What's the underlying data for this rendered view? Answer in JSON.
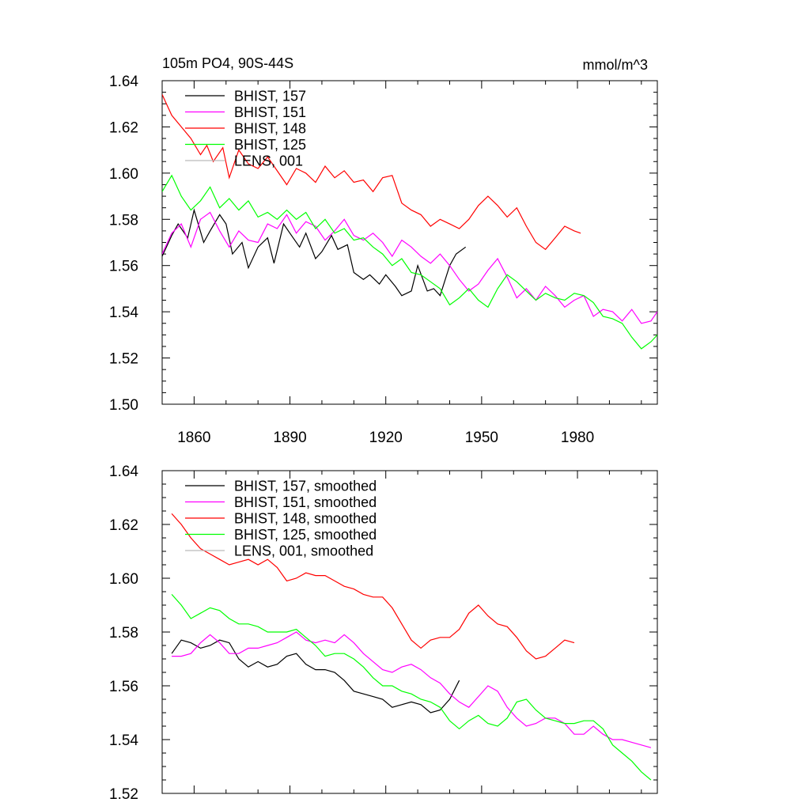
{
  "chart_data": [
    {
      "type": "line",
      "title": "105m PO4, 90S-44S",
      "units": "mmol/m^3",
      "xlabel": "",
      "ylabel": "",
      "xlim": [
        1850,
        2005
      ],
      "ylim": [
        1.5,
        1.64
      ],
      "xticks": [
        1860,
        1890,
        1920,
        1950,
        1980
      ],
      "yticks": [
        1.5,
        1.52,
        1.54,
        1.56,
        1.58,
        1.6,
        1.62,
        1.64
      ],
      "ytick_labels": [
        "1.50",
        "1.52",
        "1.54",
        "1.56",
        "1.58",
        "1.60",
        "1.62",
        "1.64"
      ],
      "grid": false,
      "legend_position": "top-left",
      "series": [
        {
          "name": "BHIST, 157",
          "color": "#000000",
          "x": [
            1850,
            1853,
            1855,
            1858,
            1860,
            1863,
            1865,
            1868,
            1870,
            1872,
            1875,
            1877,
            1880,
            1883,
            1885,
            1888,
            1890,
            1893,
            1895,
            1898,
            1900,
            1903,
            1905,
            1908,
            1910,
            1913,
            1915,
            1918,
            1920,
            1923,
            1925,
            1928,
            1930,
            1933,
            1935,
            1937,
            1940,
            1942,
            1945
          ],
          "y": [
            1.564,
            1.573,
            1.578,
            1.572,
            1.584,
            1.57,
            1.575,
            1.582,
            1.578,
            1.565,
            1.57,
            1.559,
            1.568,
            1.572,
            1.561,
            1.578,
            1.574,
            1.568,
            1.574,
            1.563,
            1.566,
            1.573,
            1.567,
            1.569,
            1.557,
            1.554,
            1.556,
            1.552,
            1.556,
            1.551,
            1.547,
            1.549,
            1.56,
            1.549,
            1.55,
            1.547,
            1.56,
            1.565,
            1.568
          ]
        },
        {
          "name": "BHIST, 151",
          "color": "#ff00ff",
          "x": [
            1850,
            1853,
            1856,
            1859,
            1862,
            1865,
            1868,
            1871,
            1874,
            1877,
            1880,
            1883,
            1886,
            1889,
            1892,
            1895,
            1898,
            1901,
            1904,
            1907,
            1910,
            1913,
            1916,
            1919,
            1922,
            1925,
            1928,
            1931,
            1934,
            1937,
            1940,
            1943,
            1946,
            1949,
            1952,
            1955,
            1958,
            1961,
            1964,
            1967,
            1970,
            1973,
            1976,
            1979,
            1982,
            1985,
            1988,
            1991,
            1994,
            1997,
            2000,
            2003,
            2005
          ],
          "y": [
            1.565,
            1.574,
            1.578,
            1.568,
            1.58,
            1.583,
            1.575,
            1.568,
            1.575,
            1.571,
            1.57,
            1.578,
            1.576,
            1.582,
            1.574,
            1.579,
            1.577,
            1.571,
            1.575,
            1.58,
            1.573,
            1.571,
            1.574,
            1.57,
            1.564,
            1.571,
            1.568,
            1.564,
            1.561,
            1.565,
            1.56,
            1.554,
            1.549,
            1.552,
            1.558,
            1.563,
            1.555,
            1.546,
            1.55,
            1.545,
            1.551,
            1.547,
            1.542,
            1.545,
            1.547,
            1.538,
            1.541,
            1.54,
            1.536,
            1.541,
            1.535,
            1.536,
            1.54
          ]
        },
        {
          "name": "BHIST, 148",
          "color": "#ff0000",
          "x": [
            1850,
            1853,
            1856,
            1859,
            1862,
            1864,
            1866,
            1869,
            1871,
            1874,
            1877,
            1880,
            1883,
            1886,
            1889,
            1892,
            1895,
            1898,
            1901,
            1904,
            1907,
            1910,
            1913,
            1916,
            1919,
            1922,
            1925,
            1928,
            1931,
            1934,
            1937,
            1940,
            1943,
            1946,
            1949,
            1952,
            1955,
            1958,
            1961,
            1964,
            1967,
            1970,
            1973,
            1976,
            1979,
            1981
          ],
          "y": [
            1.634,
            1.625,
            1.62,
            1.615,
            1.608,
            1.612,
            1.605,
            1.611,
            1.598,
            1.61,
            1.604,
            1.602,
            1.607,
            1.601,
            1.595,
            1.602,
            1.6,
            1.596,
            1.603,
            1.598,
            1.601,
            1.596,
            1.597,
            1.592,
            1.598,
            1.599,
            1.587,
            1.584,
            1.582,
            1.577,
            1.58,
            1.578,
            1.576,
            1.58,
            1.586,
            1.59,
            1.586,
            1.581,
            1.585,
            1.577,
            1.57,
            1.567,
            1.572,
            1.577,
            1.575,
            1.574
          ]
        },
        {
          "name": "BHIST, 125",
          "color": "#00ff00",
          "x": [
            1850,
            1853,
            1856,
            1859,
            1862,
            1865,
            1868,
            1871,
            1874,
            1877,
            1880,
            1883,
            1886,
            1889,
            1892,
            1895,
            1898,
            1901,
            1904,
            1907,
            1910,
            1913,
            1916,
            1919,
            1922,
            1925,
            1928,
            1931,
            1934,
            1937,
            1940,
            1943,
            1946,
            1949,
            1952,
            1955,
            1958,
            1961,
            1964,
            1967,
            1970,
            1973,
            1976,
            1979,
            1982,
            1985,
            1988,
            1991,
            1994,
            1997,
            2000,
            2003,
            2005
          ],
          "y": [
            1.592,
            1.599,
            1.59,
            1.584,
            1.588,
            1.594,
            1.585,
            1.589,
            1.584,
            1.588,
            1.581,
            1.583,
            1.58,
            1.584,
            1.58,
            1.583,
            1.576,
            1.58,
            1.574,
            1.576,
            1.571,
            1.572,
            1.568,
            1.565,
            1.56,
            1.563,
            1.557,
            1.556,
            1.553,
            1.55,
            1.543,
            1.546,
            1.55,
            1.545,
            1.542,
            1.55,
            1.556,
            1.553,
            1.549,
            1.545,
            1.548,
            1.546,
            1.545,
            1.548,
            1.547,
            1.544,
            1.538,
            1.537,
            1.535,
            1.529,
            1.524,
            1.527,
            1.53
          ]
        },
        {
          "name": "LENS, 001",
          "color": "#bbbbbb",
          "x": [],
          "y": []
        }
      ]
    },
    {
      "type": "line",
      "title": "",
      "xlabel": "",
      "ylabel": "",
      "xlim": [
        1850,
        2005
      ],
      "ylim": [
        1.52,
        1.64
      ],
      "xticks": [
        1860,
        1890,
        1920,
        1950,
        1980
      ],
      "yticks": [
        1.52,
        1.54,
        1.56,
        1.58,
        1.6,
        1.62,
        1.64
      ],
      "ytick_labels": [
        "1.52",
        "1.54",
        "1.56",
        "1.58",
        "1.60",
        "1.62",
        "1.64"
      ],
      "grid": false,
      "legend_position": "top-left",
      "series": [
        {
          "name": "BHIST, 157, smoothed",
          "color": "#000000",
          "x": [
            1853,
            1856,
            1859,
            1862,
            1865,
            1868,
            1871,
            1874,
            1877,
            1880,
            1883,
            1886,
            1889,
            1892,
            1895,
            1898,
            1901,
            1904,
            1907,
            1910,
            1913,
            1916,
            1919,
            1922,
            1925,
            1928,
            1931,
            1934,
            1937,
            1940,
            1943
          ],
          "y": [
            1.572,
            1.577,
            1.576,
            1.574,
            1.575,
            1.577,
            1.576,
            1.57,
            1.567,
            1.569,
            1.567,
            1.568,
            1.571,
            1.572,
            1.568,
            1.566,
            1.566,
            1.565,
            1.562,
            1.558,
            1.557,
            1.556,
            1.555,
            1.552,
            1.553,
            1.554,
            1.553,
            1.55,
            1.551,
            1.555,
            1.562
          ]
        },
        {
          "name": "BHIST, 151, smoothed",
          "color": "#ff00ff",
          "x": [
            1853,
            1856,
            1859,
            1862,
            1865,
            1868,
            1871,
            1874,
            1877,
            1880,
            1883,
            1886,
            1889,
            1892,
            1895,
            1898,
            1901,
            1904,
            1907,
            1910,
            1913,
            1916,
            1919,
            1922,
            1925,
            1928,
            1931,
            1934,
            1937,
            1940,
            1943,
            1946,
            1949,
            1952,
            1955,
            1958,
            1961,
            1964,
            1967,
            1970,
            1973,
            1976,
            1979,
            1982,
            1985,
            1988,
            1991,
            1994,
            1997,
            2000,
            2003
          ],
          "y": [
            1.571,
            1.571,
            1.572,
            1.576,
            1.579,
            1.576,
            1.572,
            1.572,
            1.574,
            1.574,
            1.575,
            1.576,
            1.578,
            1.58,
            1.577,
            1.576,
            1.577,
            1.576,
            1.579,
            1.576,
            1.572,
            1.569,
            1.566,
            1.565,
            1.567,
            1.568,
            1.566,
            1.563,
            1.561,
            1.557,
            1.554,
            1.552,
            1.556,
            1.56,
            1.558,
            1.552,
            1.548,
            1.545,
            1.546,
            1.548,
            1.548,
            1.546,
            1.542,
            1.542,
            1.545,
            1.542,
            1.54,
            1.54,
            1.539,
            1.538,
            1.537
          ]
        },
        {
          "name": "BHIST, 148, smoothed",
          "color": "#ff0000",
          "x": [
            1853,
            1856,
            1859,
            1862,
            1865,
            1868,
            1871,
            1874,
            1877,
            1880,
            1883,
            1886,
            1889,
            1892,
            1895,
            1898,
            1901,
            1904,
            1907,
            1910,
            1913,
            1916,
            1919,
            1922,
            1925,
            1928,
            1931,
            1934,
            1937,
            1940,
            1943,
            1946,
            1949,
            1952,
            1955,
            1958,
            1961,
            1964,
            1967,
            1970,
            1973,
            1976,
            1979
          ],
          "y": [
            1.624,
            1.62,
            1.615,
            1.611,
            1.609,
            1.607,
            1.605,
            1.606,
            1.607,
            1.605,
            1.607,
            1.604,
            1.599,
            1.6,
            1.602,
            1.601,
            1.601,
            1.599,
            1.597,
            1.596,
            1.594,
            1.593,
            1.593,
            1.589,
            1.583,
            1.577,
            1.574,
            1.577,
            1.578,
            1.578,
            1.581,
            1.587,
            1.59,
            1.586,
            1.583,
            1.582,
            1.578,
            1.573,
            1.57,
            1.571,
            1.574,
            1.577,
            1.576
          ]
        },
        {
          "name": "BHIST, 125, smoothed",
          "color": "#00ff00",
          "x": [
            1853,
            1856,
            1859,
            1862,
            1865,
            1868,
            1871,
            1874,
            1877,
            1880,
            1883,
            1886,
            1889,
            1892,
            1895,
            1898,
            1901,
            1904,
            1907,
            1910,
            1913,
            1916,
            1919,
            1922,
            1925,
            1928,
            1931,
            1934,
            1937,
            1940,
            1943,
            1946,
            1949,
            1952,
            1955,
            1958,
            1961,
            1964,
            1967,
            1970,
            1973,
            1976,
            1979,
            1982,
            1985,
            1988,
            1991,
            1994,
            1997,
            2000,
            2003
          ],
          "y": [
            1.594,
            1.59,
            1.585,
            1.587,
            1.589,
            1.588,
            1.585,
            1.583,
            1.583,
            1.582,
            1.58,
            1.58,
            1.58,
            1.581,
            1.578,
            1.575,
            1.571,
            1.572,
            1.572,
            1.57,
            1.567,
            1.563,
            1.56,
            1.56,
            1.558,
            1.557,
            1.555,
            1.554,
            1.552,
            1.547,
            1.544,
            1.547,
            1.549,
            1.546,
            1.545,
            1.548,
            1.554,
            1.555,
            1.551,
            1.548,
            1.547,
            1.546,
            1.546,
            1.547,
            1.547,
            1.544,
            1.538,
            1.535,
            1.532,
            1.528,
            1.525
          ]
        },
        {
          "name": "LENS, 001, smoothed",
          "color": "#bbbbbb",
          "x": [],
          "y": []
        }
      ]
    }
  ]
}
